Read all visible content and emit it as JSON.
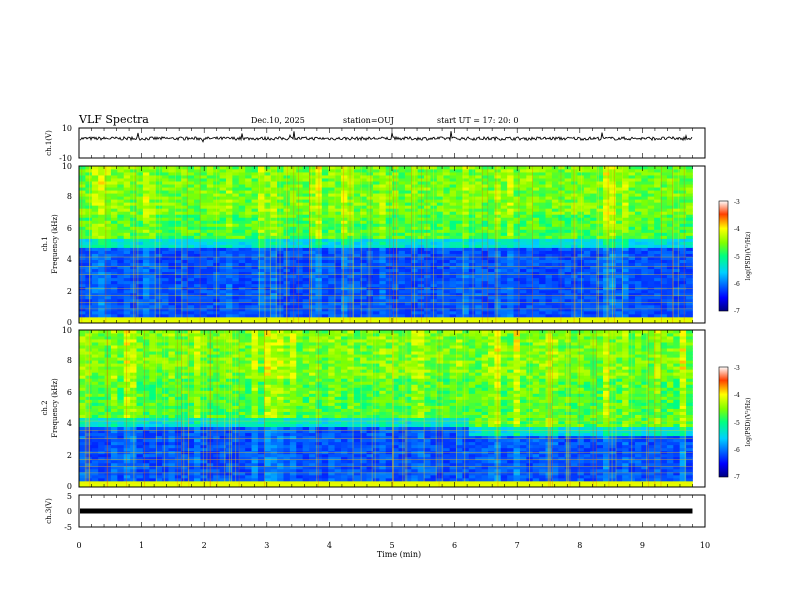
{
  "header": {
    "title": "VLF Spectra",
    "date": "Dec.10, 2025",
    "station": "station=OUJ",
    "start": "start  UT =   17: 20: 0"
  },
  "chart_data": [
    {
      "type": "line",
      "name_label": "ch.1(V)",
      "ylim": [
        -10,
        10
      ],
      "ytick_labels": [
        "10",
        "-10"
      ],
      "baseline": 3,
      "noise": 1.1
    },
    {
      "type": "heatmap",
      "name_label": "ch.1",
      "ylabel": "Frequency  (kHz)",
      "ylim": [
        0,
        10
      ],
      "ytick_labels": [
        "0",
        "2",
        "4",
        "6",
        "8",
        "10"
      ],
      "colorbar": {
        "label": "log(PSD)(V²/Hz)",
        "range": [
          -7,
          -3
        ],
        "tick_labels": [
          "-3",
          "-4",
          "-5",
          "-6",
          "-7"
        ]
      },
      "band_edge_khz": 4.8
    },
    {
      "type": "heatmap",
      "name_label": "ch.2",
      "ylabel": "Frequency  (kHz)",
      "ylim": [
        0,
        10
      ],
      "ytick_labels": [
        "0",
        "2",
        "4",
        "6",
        "8",
        "10"
      ],
      "colorbar": {
        "label": "log(PSD)(V²/Hz)",
        "range": [
          -7,
          -3
        ],
        "tick_labels": [
          "-3",
          "-4",
          "-5",
          "-6",
          "-7"
        ]
      },
      "band_edge_khz": 3.8
    },
    {
      "type": "line",
      "name_label": "ch.3(V)",
      "ylim": [
        -5,
        5
      ],
      "ytick_labels": [
        "5",
        "0",
        "-5"
      ],
      "baseline": 0,
      "noise": 0
    }
  ],
  "xaxis": {
    "label": "Time  (min)",
    "range": [
      0,
      10
    ],
    "data_end": 9.8,
    "tick_labels": [
      "0",
      "1",
      "2",
      "3",
      "4",
      "5",
      "6",
      "7",
      "8",
      "9",
      "10"
    ]
  }
}
